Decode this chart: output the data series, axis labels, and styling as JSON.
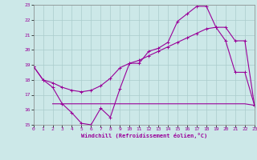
{
  "xlabel": "Windchill (Refroidissement éolien,°C)",
  "xlim": [
    0,
    23
  ],
  "ylim": [
    15,
    23
  ],
  "yticks": [
    15,
    16,
    17,
    18,
    19,
    20,
    21,
    22,
    23
  ],
  "xticks": [
    0,
    1,
    2,
    3,
    4,
    5,
    6,
    7,
    8,
    9,
    10,
    11,
    12,
    13,
    14,
    15,
    16,
    17,
    18,
    19,
    20,
    21,
    22,
    23
  ],
  "background_color": "#cce8e8",
  "grid_color": "#aacccc",
  "line_color": "#990099",
  "line1_x": [
    0,
    1,
    2,
    3,
    4,
    5,
    6,
    7,
    8,
    9,
    10,
    11,
    12,
    13,
    14,
    15,
    16,
    17,
    18,
    19,
    20,
    21,
    22,
    23
  ],
  "line1_y": [
    18.9,
    18.0,
    17.5,
    16.4,
    15.8,
    15.1,
    15.0,
    16.1,
    15.5,
    17.4,
    19.1,
    19.1,
    19.9,
    20.1,
    20.5,
    21.9,
    22.4,
    22.9,
    22.9,
    21.5,
    20.6,
    18.5,
    18.5,
    16.3
  ],
  "line2_x": [
    2,
    3,
    4,
    5,
    6,
    7,
    8,
    9,
    10,
    11,
    12,
    13,
    14,
    15,
    16,
    17,
    18,
    19,
    20,
    21,
    22,
    23
  ],
  "line2_y": [
    16.4,
    16.4,
    16.4,
    16.4,
    16.4,
    16.4,
    16.4,
    16.4,
    16.4,
    16.4,
    16.4,
    16.4,
    16.4,
    16.4,
    16.4,
    16.4,
    16.4,
    16.4,
    16.4,
    16.4,
    16.4,
    16.3
  ],
  "line3_x": [
    0,
    1,
    2,
    3,
    4,
    5,
    6,
    7,
    8,
    9,
    10,
    11,
    12,
    13,
    14,
    15,
    16,
    17,
    18,
    19,
    20,
    21,
    22,
    23
  ],
  "line3_y": [
    18.9,
    18.0,
    17.8,
    17.5,
    17.3,
    17.2,
    17.3,
    17.6,
    18.1,
    18.8,
    19.1,
    19.3,
    19.6,
    19.9,
    20.2,
    20.5,
    20.8,
    21.1,
    21.4,
    21.5,
    21.5,
    20.6,
    20.6,
    16.3
  ]
}
